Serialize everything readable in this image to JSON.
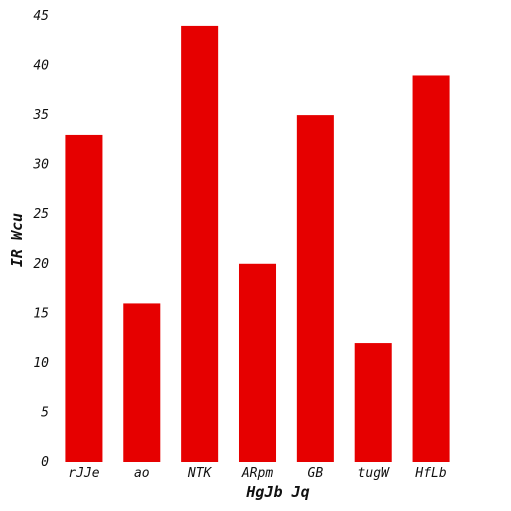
{
  "chart_data": {
    "type": "bar",
    "categories": [
      "rJJe",
      "ao",
      "NTK",
      "ARpm",
      "GB",
      "tugW",
      "HfLb"
    ],
    "values": [
      33,
      16,
      44,
      20,
      35,
      12,
      39
    ],
    "xlabel": "HgJb Jq",
    "ylabel": "IR Wcu",
    "ylim": [
      0,
      45
    ],
    "yticks": [
      0,
      5,
      10,
      15,
      20,
      25,
      30,
      35,
      40,
      45
    ],
    "grid": false,
    "legend": "none",
    "bar_color": "#e60000"
  }
}
